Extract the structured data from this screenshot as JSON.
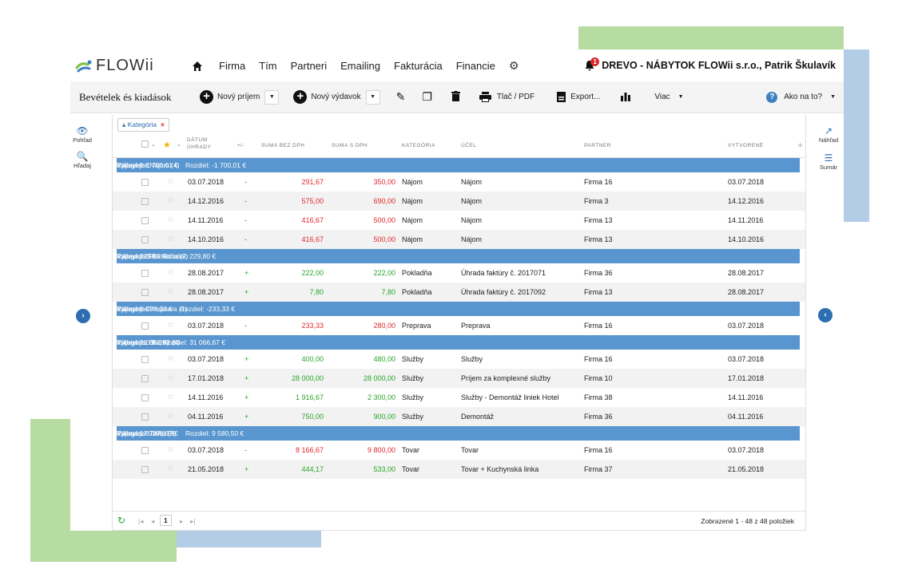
{
  "brand": {
    "name": "FLOWii"
  },
  "nav": {
    "items": [
      "Firma",
      "Tím",
      "Partneri",
      "Emailing",
      "Fakturácia",
      "Financie"
    ],
    "notification_count": "1",
    "company": "DREVO - NÁBYTOK FLOWii s.r.o., Patrik Škulavík"
  },
  "toolbar": {
    "title": "Bevételek és kiadások",
    "new_income": "Nový príjem",
    "new_expense": "Nový výdavok",
    "print": "Tlač / PDF",
    "export": "Export...",
    "more": "Viac",
    "help": "Ako na to?"
  },
  "left_sidebar": {
    "view": "Pohľad",
    "search": "Hľadaj"
  },
  "right_sidebar": {
    "preview": "Náhľad",
    "summary": "Sumár"
  },
  "filter": {
    "chip": "Kategória"
  },
  "columns": {
    "date": "DÁTUM ÚHRADY",
    "sign": "+/-",
    "net": "SUMA BEZ DPH",
    "gross": "SUMA S DPH",
    "category": "KATEGÓRIA",
    "purpose": "ÚČEL",
    "partner": "PARTNER",
    "created": "VYTVORENÉ"
  },
  "groups": [
    {
      "title": "Kategória: Nájom (4)",
      "income": "Príjmy: 0 €",
      "expense": "Výdavky: 1 700,01 €",
      "diff": "Rozdiel: -1 700,01 €",
      "rows": [
        {
          "date": "03.07.2018",
          "sign": "-",
          "net": "291,67",
          "gross": "350,00",
          "category": "Nájom",
          "purpose": "Nájom",
          "partner": "Firma 16",
          "created": "03.07.2018"
        },
        {
          "date": "14.12.2016",
          "sign": "-",
          "net": "575,00",
          "gross": "690,00",
          "category": "Nájom",
          "purpose": "Nájom",
          "partner": "Firma 3",
          "created": "14.12.2016"
        },
        {
          "date": "14.11.2016",
          "sign": "-",
          "net": "416,67",
          "gross": "500,00",
          "category": "Nájom",
          "purpose": "Nájom",
          "partner": "Firma 13",
          "created": "14.11.2016"
        },
        {
          "date": "14.10.2016",
          "sign": "-",
          "net": "416,67",
          "gross": "500,00",
          "category": "Nájom",
          "purpose": "Nájom",
          "partner": "Firma 13",
          "created": "14.10.2016"
        }
      ]
    },
    {
      "title": "Kategória: Pokladňa (2)",
      "income": "Príjmy: 229,80 €",
      "expense": "Výdavky: 0 €",
      "diff": "Rozdiel: 229,80 €",
      "rows": [
        {
          "date": "28.08.2017",
          "sign": "+",
          "net": "222,00",
          "gross": "222,00",
          "category": "Pokladňa",
          "purpose": "Úhrada faktúry č. 2017071",
          "partner": "Firma 36",
          "created": "28.08.2017"
        },
        {
          "date": "28.08.2017",
          "sign": "+",
          "net": "7,80",
          "gross": "7,80",
          "category": "Pokladňa",
          "purpose": "Úhrada faktúry č. 2017092",
          "partner": "Firma 13",
          "created": "28.08.2017"
        }
      ]
    },
    {
      "title": "Kategória: Preprava (1)",
      "income": "Príjmy: 0 €",
      "expense": "Výdavky: 233,33 €",
      "diff": "Rozdiel: -233,33 €",
      "rows": [
        {
          "date": "03.07.2018",
          "sign": "-",
          "net": "233,33",
          "gross": "280,00",
          "category": "Preprava",
          "purpose": "Preprava",
          "partner": "Firma 16",
          "created": "03.07.2018"
        }
      ]
    },
    {
      "title": "Kategória: Služby (4)",
      "income": "Príjmy: 31 066,67 €",
      "expense": "Výdavky: 0 €",
      "diff": "Rozdiel: 31 066,67 €",
      "rows": [
        {
          "date": "03.07.2018",
          "sign": "+",
          "net": "400,00",
          "gross": "480,00",
          "category": "Služby",
          "purpose": "Služby",
          "partner": "Firma 16",
          "created": "03.07.2018"
        },
        {
          "date": "17.01.2018",
          "sign": "+",
          "net": "28 000,00",
          "gross": "28 000,00",
          "category": "Služby",
          "purpose": "Príjem za komplexné služby",
          "partner": "Firma 10",
          "created": "17.01.2018"
        },
        {
          "date": "14.11.2016",
          "sign": "+",
          "net": "1 916,67",
          "gross": "2 300,00",
          "category": "Služby",
          "purpose": "Služby - Demontáž liniek Hotel",
          "partner": "Firma 38",
          "created": "14.11.2016"
        },
        {
          "date": "04.11.2016",
          "sign": "+",
          "net": "750,00",
          "gross": "900,00",
          "category": "Služby",
          "purpose": "Demontáž",
          "partner": "Firma 36",
          "created": "04.11.2016"
        }
      ]
    },
    {
      "title": "Kategória: Tovar (9)",
      "income": "Príjmy: 17 747,17 €",
      "expense": "Výdavky: 8 166,67 €",
      "diff": "Rozdiel: 9 580,50 €",
      "rows": [
        {
          "date": "03.07.2018",
          "sign": "-",
          "net": "8 166,67",
          "gross": "9 800,00",
          "category": "Tovar",
          "purpose": "Tovar",
          "partner": "Firma 16",
          "created": "03.07.2018"
        },
        {
          "date": "21.05.2018",
          "sign": "+",
          "net": "444,17",
          "gross": "533,00",
          "category": "Tovar",
          "purpose": "Tovar + Kuchynská linka",
          "partner": "Firma 37",
          "created": "21.05.2018"
        }
      ]
    }
  ],
  "pagination": {
    "page": "1",
    "summary": "Zobrazené 1 - 48 z 48 položiek"
  },
  "colors": {
    "group_bg": "#5996cf",
    "expense": "#e0292d",
    "income": "#2aa52a",
    "accent": "#2d6eb0"
  }
}
